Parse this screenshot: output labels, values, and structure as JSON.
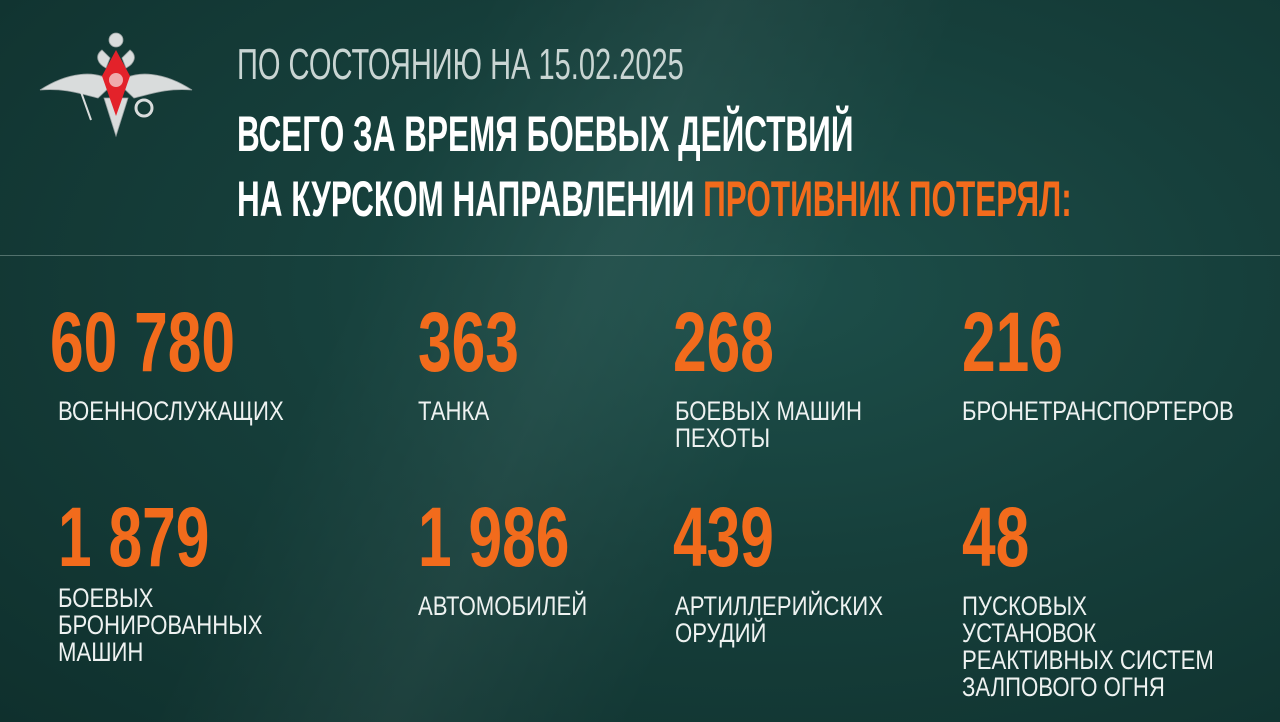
{
  "header": {
    "date_line": "ПО СОСТОЯНИЮ НА 15.02.2025",
    "title_line1": "ВСЕГО ЗА ВРЕМЯ БОЕВЫХ ДЕЙСТВИЙ",
    "title_line2_white": "НА КУРСКОМ НАПРАВЛЕНИИ",
    "title_line2_orange": "ПРОТИВНИК ПОТЕРЯЛ:"
  },
  "colors": {
    "accent": "#f26b1c",
    "background": "#163f3b",
    "text": "#ffffff"
  },
  "emblem": {
    "icon": "double-headed-eagle-emblem"
  },
  "stats": [
    {
      "value": "60 780",
      "label": "ВОЕННОСЛУЖАЩИХ"
    },
    {
      "value": "363",
      "label": "ТАНКА"
    },
    {
      "value": "268",
      "label": "БОЕВЫХ МАШИН\nПЕХОТЫ"
    },
    {
      "value": "216",
      "label": "БРОНЕТРАНСПОРТЕРОВ"
    },
    {
      "value": "1 879",
      "label": "БОЕВЫХ\nБРОНИРОВАННЫХ\nМАШИН"
    },
    {
      "value": "1 986",
      "label": "АВТОМОБИЛЕЙ"
    },
    {
      "value": "439",
      "label": "АРТИЛЛЕРИЙСКИХ\nОРУДИЙ"
    },
    {
      "value": "48",
      "label": "ПУСКОВЫХ УСТАНОВОК\nРЕАКТИВНЫХ СИСТЕМ\nЗАЛПОВОГО ОГНЯ"
    }
  ]
}
